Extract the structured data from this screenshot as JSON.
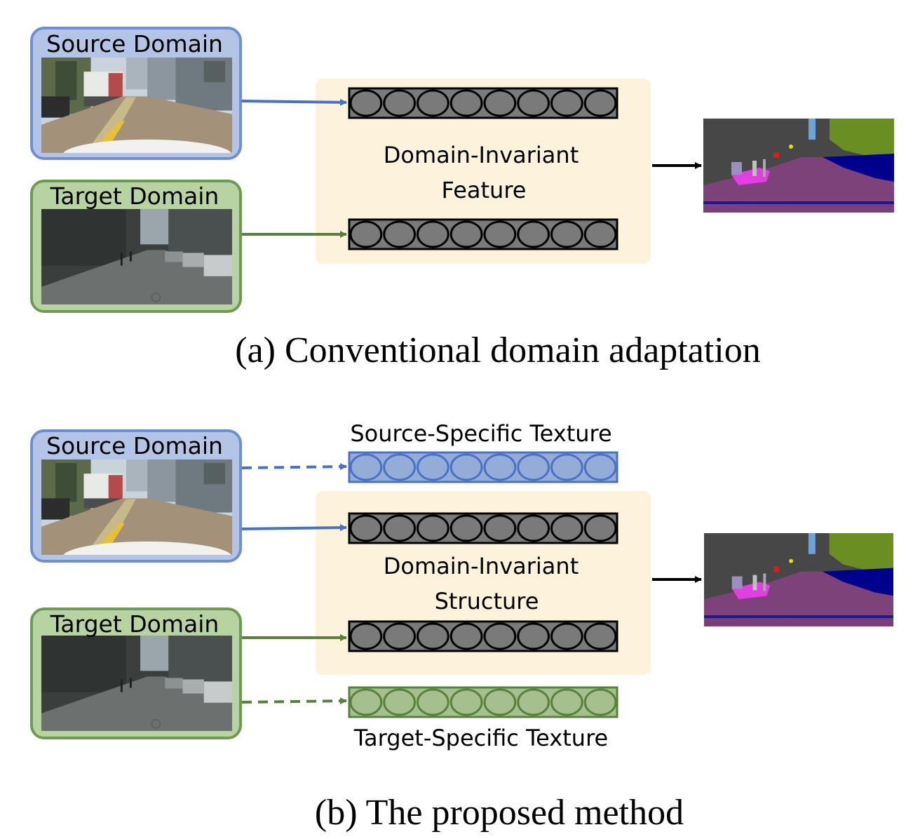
{
  "panel_a": {
    "source_label": "Source Domain",
    "target_label": "Target Domain",
    "invariant_label_line1": "Domain-Invariant",
    "invariant_label_line2": "Feature",
    "caption": "(a) Conventional domain adaptation"
  },
  "panel_b": {
    "source_label": "Source Domain",
    "target_label": "Target Domain",
    "source_texture_label": "Source-Specific Texture",
    "target_texture_label": "Target-Specific Texture",
    "invariant_label_line1": "Domain-Invariant",
    "invariant_label_line2": "Structure",
    "caption": "(b) The proposed method"
  },
  "colors": {
    "source_border": "#6f8fce",
    "source_fill": "#b3c4e6",
    "target_border": "#6f9a52",
    "target_fill": "#b7d3a2",
    "invariant_box": "#fdf3dc",
    "feature_gray": "#7a7a7a",
    "source_texture": "#94acd8",
    "target_texture": "#a5bf8f",
    "arrow_blue": "#4a72c4",
    "arrow_green": "#58823a"
  }
}
